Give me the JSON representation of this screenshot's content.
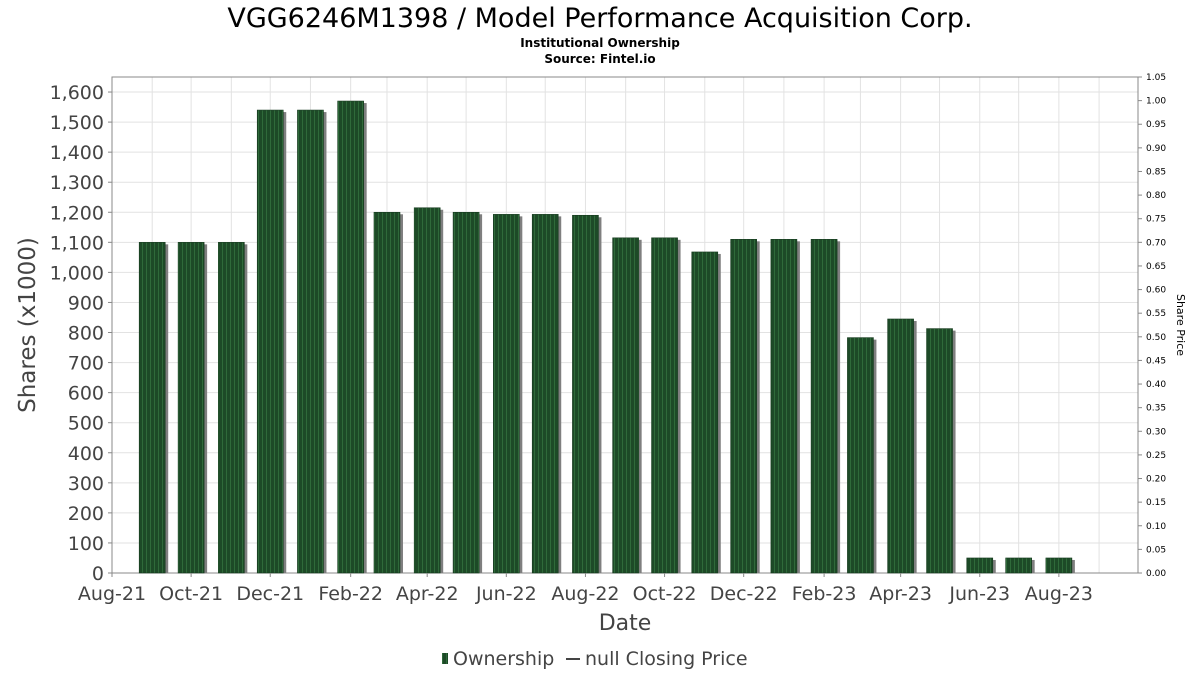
{
  "chart_data": {
    "type": "bar",
    "title": "VGG6246M1398 / Model Performance Acquisition Corp.",
    "subtitle_line1": "Institutional Ownership",
    "subtitle_line2": "Source: Fintel.io",
    "xlabel": "Date",
    "ylabel": "Shares (x1000)",
    "y2label": "Share Price",
    "ylim": [
      0,
      1650
    ],
    "y_ticks": [
      0,
      100,
      200,
      300,
      400,
      500,
      600,
      700,
      800,
      900,
      1000,
      1100,
      1200,
      1300,
      1400,
      1500,
      1600
    ],
    "y_tick_labels": [
      "0",
      "100",
      "200",
      "300",
      "400",
      "500",
      "600",
      "700",
      "800",
      "900",
      "1,000",
      "1,100",
      "1,200",
      "1,300",
      "1,400",
      "1,500",
      "1,600"
    ],
    "y2lim": [
      0,
      1.05
    ],
    "y2_tick_labels": [
      "0.00",
      "0.05",
      "0.10",
      "0.15",
      "0.20",
      "0.25",
      "0.30",
      "0.35",
      "0.40",
      "0.45",
      "0.50",
      "0.55",
      "0.60",
      "0.65",
      "0.70",
      "0.75",
      "0.80",
      "0.85",
      "0.90",
      "0.95",
      "1.00",
      "1.05"
    ],
    "x_tick_labels": [
      "Aug-21",
      "Oct-21",
      "Dec-21",
      "Feb-22",
      "Apr-22",
      "Jun-22",
      "Aug-22",
      "Oct-22",
      "Dec-22",
      "Feb-23",
      "Apr-23",
      "Jun-23",
      "Aug-23"
    ],
    "grid": true,
    "legend_position": "bottom",
    "series": [
      {
        "name": "Ownership",
        "color": "#1e4a2a",
        "x": [
          "2021-09-01",
          "2021-10-01",
          "2021-11-01",
          "2021-12-01",
          "2022-01-01",
          "2022-02-01",
          "2022-03-01",
          "2022-04-01",
          "2022-05-01",
          "2022-06-01",
          "2022-07-01",
          "2022-08-01",
          "2022-09-01",
          "2022-10-01",
          "2022-11-01",
          "2022-12-01",
          "2023-01-01",
          "2023-02-01",
          "2023-03-01",
          "2023-04-01",
          "2023-05-01",
          "2023-06-01",
          "2023-07-01",
          "2023-08-01"
        ],
        "values": [
          1100,
          1100,
          1100,
          1540,
          1540,
          1570,
          1200,
          1215,
          1200,
          1193,
          1193,
          1190,
          1115,
          1115,
          1068,
          1110,
          1110,
          1110,
          783,
          845,
          813,
          50,
          50,
          50
        ]
      },
      {
        "name": "null Closing Price",
        "color": "#555555",
        "values": []
      }
    ]
  }
}
